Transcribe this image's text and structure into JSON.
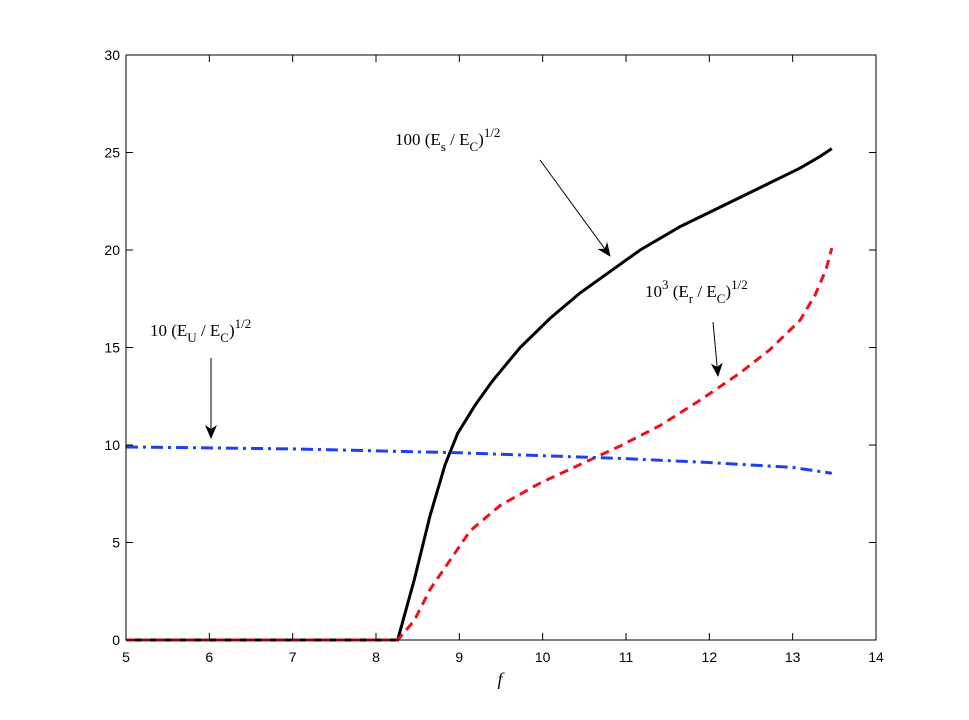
{
  "chart_data": {
    "type": "line",
    "x_label": "f",
    "xlim": [
      5,
      14
    ],
    "ylim": [
      0,
      30
    ],
    "xticks": [
      5,
      6,
      7,
      8,
      9,
      10,
      11,
      12,
      13,
      14
    ],
    "yticks": [
      0,
      5,
      10,
      15,
      20,
      25,
      30
    ],
    "series": [
      {
        "color": "#000000",
        "dash": "solid",
        "x": [
          5,
          6,
          7,
          8,
          8.26,
          8.46,
          8.65,
          8.83,
          8.98,
          9.19,
          9.4,
          9.73,
          10.09,
          10.45,
          10.81,
          11.17,
          11.65,
          12.13,
          12.61,
          13.09,
          13.33,
          13.47
        ],
        "values": [
          0,
          0,
          0,
          0,
          0,
          3.1,
          6.4,
          9.0,
          10.6,
          12.05,
          13.3,
          15.0,
          16.5,
          17.8,
          18.9,
          20.0,
          21.2,
          22.2,
          23.2,
          24.2,
          24.8,
          25.2
        ]
      },
      {
        "color": "#e8141b",
        "dash": "dashed",
        "x": [
          5,
          6,
          7,
          8,
          8.26,
          8.46,
          8.65,
          8.89,
          9.13,
          9.49,
          9.97,
          10.45,
          10.93,
          11.41,
          11.89,
          12.37,
          12.73,
          13.09,
          13.27,
          13.4,
          13.47
        ],
        "values": [
          0,
          0,
          0,
          0,
          0,
          1.0,
          2.6,
          4.1,
          5.6,
          6.9,
          8.05,
          9.0,
          9.95,
          11.0,
          12.3,
          13.7,
          14.9,
          16.4,
          17.7,
          19.0,
          20.1
        ]
      },
      {
        "color": "#1f3ff2",
        "dash": "dashdot",
        "x": [
          5,
          6,
          7,
          8,
          9,
          10,
          11,
          12,
          13,
          13.47
        ],
        "values": [
          9.9,
          9.85,
          9.8,
          9.7,
          9.6,
          9.45,
          9.3,
          9.1,
          8.85,
          8.55
        ]
      }
    ],
    "annotations": [
      {
        "parts": [
          {
            "text": "100 (E"
          },
          {
            "sub": "s"
          },
          {
            "text": " / E"
          },
          {
            "sub": "C"
          },
          {
            "text": ")"
          },
          {
            "sup": "1/2"
          }
        ]
      },
      {
        "parts": [
          {
            "text": "10 (E"
          },
          {
            "sub": "U"
          },
          {
            "text": " / E"
          },
          {
            "sub": "C"
          },
          {
            "text": ")"
          },
          {
            "sup": "1/2"
          }
        ]
      },
      {
        "parts": [
          {
            "text": "10"
          },
          {
            "sup": "3"
          },
          {
            "text": " (E"
          },
          {
            "sub": "r"
          },
          {
            "text": " / E"
          },
          {
            "sub": "C"
          },
          {
            "text": ")"
          },
          {
            "sup": "1/2"
          }
        ]
      }
    ]
  }
}
